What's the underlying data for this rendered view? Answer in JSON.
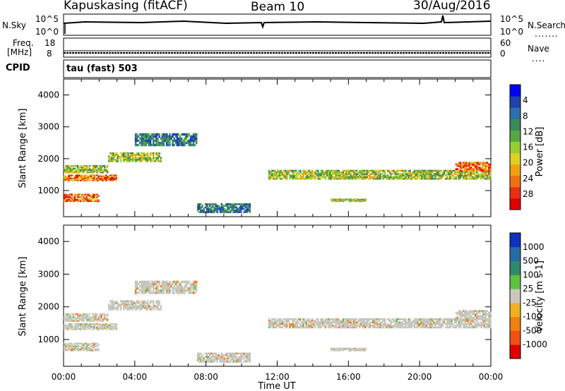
{
  "header": {
    "station": "Kapuskasing (fitACF)",
    "beam": "Beam 10",
    "date": "30/Aug/2016"
  },
  "top_panels": {
    "nsky_label": "N.Sky",
    "nsearch_label": "N.Search",
    "noise_ticks": [
      "10^5",
      "10^0"
    ],
    "freq_label": "Freq.",
    "freq_unit": "[MHz]",
    "freq_ticks": [
      "18",
      "8"
    ],
    "nave_label": "Nave",
    "nave_ticks": [
      "60",
      "0"
    ],
    "cpid_label": "CPID",
    "cpid_value": "tau (fast) 503"
  },
  "chart_data": [
    {
      "type": "heatmap",
      "name": "power",
      "ylabel": "Slant Range [km]",
      "xlabel": "Time UT",
      "xlim": [
        0,
        24
      ],
      "ylim": [
        180,
        4500
      ],
      "x_ticks": [
        "00:00",
        "04:00",
        "08:00",
        "12:00",
        "16:00",
        "20:00",
        "00:00"
      ],
      "y_ticks": [
        1000,
        2000,
        3000,
        4000
      ],
      "colorbar": {
        "label": "Power [dB]",
        "ticks": [
          "4",
          "8",
          "12",
          "16",
          "20",
          "24",
          "28"
        ],
        "colors": [
          "#0000ff",
          "#2040b0",
          "#2f6faa",
          "#3a8a5a",
          "#55a845",
          "#99cc33",
          "#ddd020",
          "#f0a010",
          "#f07010",
          "#e83010",
          "#e00000"
        ]
      },
      "bands": [
        {
          "t0": 0.0,
          "t1": 3.0,
          "r0": 1300,
          "r1": 1500,
          "level": "high"
        },
        {
          "t0": 0.0,
          "t1": 2.0,
          "r0": 650,
          "r1": 900,
          "level": "high"
        },
        {
          "t0": 0.0,
          "t1": 2.5,
          "r0": 1550,
          "r1": 1800,
          "level": "mid"
        },
        {
          "t0": 2.5,
          "t1": 5.5,
          "r0": 1900,
          "r1": 2200,
          "level": "mid"
        },
        {
          "t0": 4.0,
          "t1": 7.5,
          "r0": 2400,
          "r1": 2800,
          "level": "low"
        },
        {
          "t0": 11.5,
          "t1": 24.0,
          "r0": 1350,
          "r1": 1650,
          "level": "mid"
        },
        {
          "t0": 15.0,
          "t1": 17.0,
          "r0": 650,
          "r1": 750,
          "level": "mid"
        },
        {
          "t0": 7.5,
          "t1": 10.5,
          "r0": 300,
          "r1": 600,
          "level": "low"
        },
        {
          "t0": 22.0,
          "t1": 24.0,
          "r0": 1600,
          "r1": 1900,
          "level": "high"
        }
      ]
    },
    {
      "type": "heatmap",
      "name": "velocity",
      "ylabel": "Slant Range [km]",
      "xlabel": "Time UT",
      "xlim": [
        0,
        24
      ],
      "ylim": [
        180,
        4500
      ],
      "x_ticks": [
        "00:00",
        "04:00",
        "08:00",
        "12:00",
        "16:00",
        "20:00",
        "00:00"
      ],
      "y_ticks": [
        1000,
        2000,
        3000,
        4000
      ],
      "colorbar": {
        "label": "Velocity [m s-1]",
        "ticks": [
          "1000",
          "500",
          "100",
          "25",
          "-25",
          "-100",
          "-500",
          "-1000"
        ],
        "colors": [
          "#1030c0",
          "#2a6aa8",
          "#2e8a6a",
          "#60c040",
          "#c8c8c0",
          "#f0b020",
          "#f08010",
          "#f05010",
          "#e00000"
        ]
      }
    }
  ]
}
